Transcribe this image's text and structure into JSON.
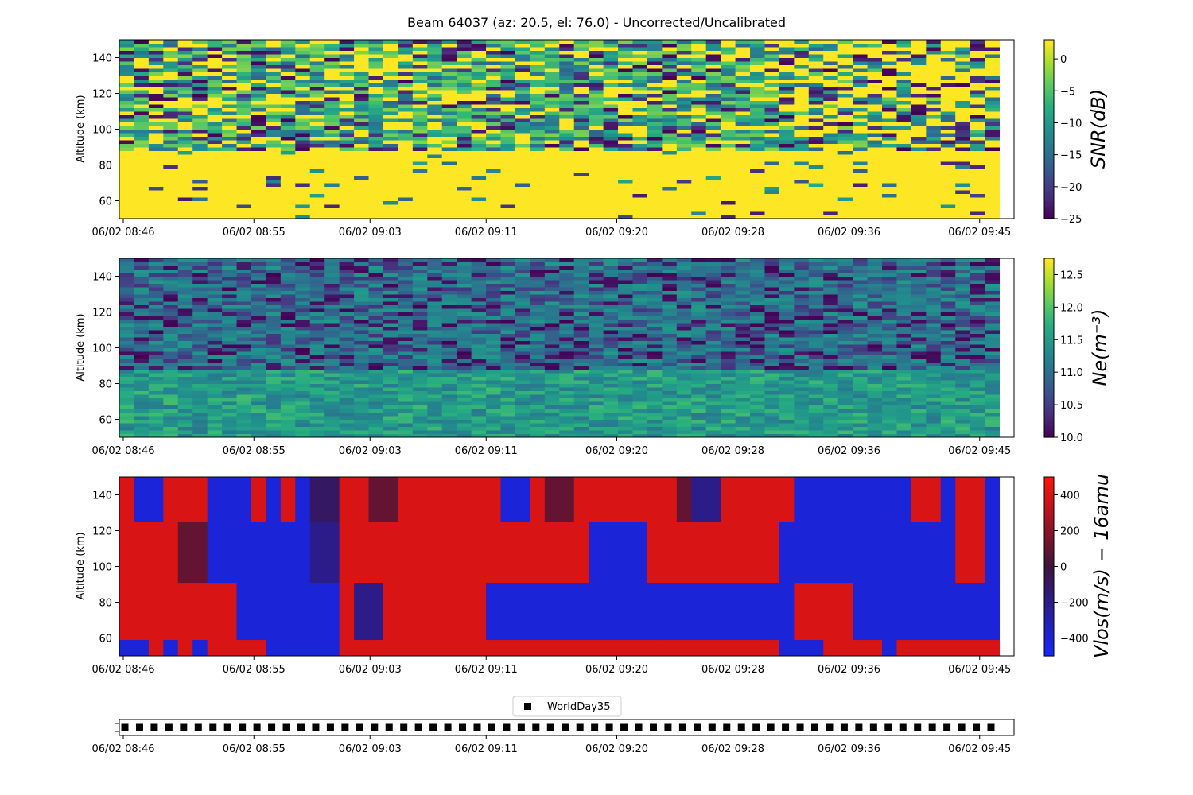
{
  "chart_data": {
    "type": "heatmap",
    "title": "Beam 64037 (az: 20.5, el: 76.0) - Uncorrected/Uncalibrated",
    "time_ticks": [
      "06/02 08:46",
      "06/02 08:55",
      "06/02 09:03",
      "06/02 09:11",
      "06/02 09:20",
      "06/02 09:28",
      "06/02 09:36",
      "06/02 09:45"
    ],
    "time_tick_minutes": [
      0,
      9,
      17,
      25,
      34,
      42,
      50,
      59
    ],
    "time_range_minutes": [
      0,
      60
    ],
    "n_time_columns": 60,
    "panels": [
      {
        "name": "snr",
        "ylabel": "Altitude (km)",
        "yticks": [
          60,
          80,
          100,
          120,
          140
        ],
        "ylim": [
          50,
          150
        ],
        "colorbar_label": "SNR(dB)",
        "colorbar_ticks": [
          0,
          -5,
          -10,
          -15,
          -20,
          -25
        ],
        "clim": [
          -25,
          3
        ],
        "colormap": "viridis",
        "description": "Strong signal (yellow) below ~90 km, noisy mixed values above"
      },
      {
        "name": "ne",
        "ylabel": "Altitude (km)",
        "yticks": [
          60,
          80,
          100,
          120,
          140
        ],
        "ylim": [
          50,
          150
        ],
        "colorbar_label": "Ne(m⁻³)",
        "colorbar_ticks": [
          12.5,
          12.0,
          11.5,
          11.0,
          10.5,
          10.0
        ],
        "clim": [
          10.0,
          12.75
        ],
        "colormap": "viridis"
      },
      {
        "name": "vlos",
        "ylabel": "Altitude (km)",
        "yticks": [
          60,
          80,
          100,
          120,
          140
        ],
        "ylim": [
          50,
          150
        ],
        "colorbar_label": "Vlos(m/s) − 16amu",
        "colorbar_ticks": [
          400,
          200,
          0,
          -200,
          -400
        ],
        "clim": [
          -500,
          500
        ],
        "colormap": "blue-red",
        "row_edges_km": [
          50,
          59,
          91,
          125,
          150
        ],
        "values": [
          [
            -400,
            400,
            400,
            400
          ],
          [
            -400,
            400,
            400,
            -400
          ],
          [
            400,
            400,
            400,
            -400
          ],
          [
            -400,
            400,
            400,
            400
          ],
          [
            400,
            400,
            100,
            400
          ],
          [
            -400,
            400,
            100,
            400
          ],
          [
            400,
            400,
            -400,
            -400
          ],
          [
            400,
            400,
            -400,
            -400
          ],
          [
            400,
            -400,
            -400,
            -400
          ],
          [
            400,
            -400,
            -400,
            400
          ],
          [
            -400,
            -400,
            -400,
            -400
          ],
          [
            -400,
            -400,
            -400,
            400
          ],
          [
            -400,
            -400,
            -400,
            -400
          ],
          [
            -400,
            -400,
            -200,
            -100
          ],
          [
            -400,
            -400,
            -200,
            -100
          ],
          [
            400,
            400,
            400,
            400
          ],
          [
            400,
            -200,
            400,
            400
          ],
          [
            400,
            -200,
            400,
            100
          ],
          [
            400,
            400,
            400,
            100
          ],
          [
            400,
            400,
            400,
            400
          ],
          [
            400,
            400,
            400,
            400
          ],
          [
            400,
            400,
            400,
            400
          ],
          [
            400,
            400,
            400,
            400
          ],
          [
            400,
            400,
            400,
            400
          ],
          [
            400,
            400,
            400,
            400
          ],
          [
            400,
            -400,
            400,
            400
          ],
          [
            400,
            -400,
            400,
            -400
          ],
          [
            400,
            -400,
            400,
            -400
          ],
          [
            400,
            -400,
            400,
            400
          ],
          [
            400,
            -400,
            400,
            100
          ],
          [
            400,
            -400,
            400,
            100
          ],
          [
            400,
            -400,
            400,
            400
          ],
          [
            400,
            -400,
            -400,
            400
          ],
          [
            400,
            -400,
            -400,
            400
          ],
          [
            400,
            -400,
            -400,
            400
          ],
          [
            400,
            -400,
            -400,
            400
          ],
          [
            400,
            -400,
            400,
            400
          ],
          [
            400,
            -400,
            400,
            400
          ],
          [
            400,
            -400,
            400,
            100
          ],
          [
            400,
            -400,
            400,
            -200
          ],
          [
            400,
            -400,
            400,
            -200
          ],
          [
            400,
            -400,
            400,
            400
          ],
          [
            400,
            -400,
            400,
            400
          ],
          [
            400,
            -400,
            400,
            400
          ],
          [
            400,
            -400,
            400,
            400
          ],
          [
            -400,
            -400,
            -400,
            400
          ],
          [
            -400,
            400,
            -400,
            -400
          ],
          [
            -400,
            400,
            -400,
            -400
          ],
          [
            400,
            400,
            -400,
            -400
          ],
          [
            400,
            400,
            -400,
            -400
          ],
          [
            400,
            -400,
            -400,
            -400
          ],
          [
            400,
            -400,
            -400,
            -400
          ],
          [
            -400,
            -400,
            -400,
            -400
          ],
          [
            400,
            -400,
            -400,
            -400
          ],
          [
            400,
            -400,
            -400,
            400
          ],
          [
            400,
            -400,
            -400,
            400
          ],
          [
            400,
            -400,
            -400,
            -400
          ],
          [
            400,
            -400,
            400,
            400
          ],
          [
            400,
            -400,
            400,
            400
          ],
          [
            400,
            -400,
            -400,
            -400
          ]
        ]
      }
    ],
    "mode_panel": {
      "legend": "WorldDay35",
      "marker": "square",
      "n_markers": 60
    }
  }
}
